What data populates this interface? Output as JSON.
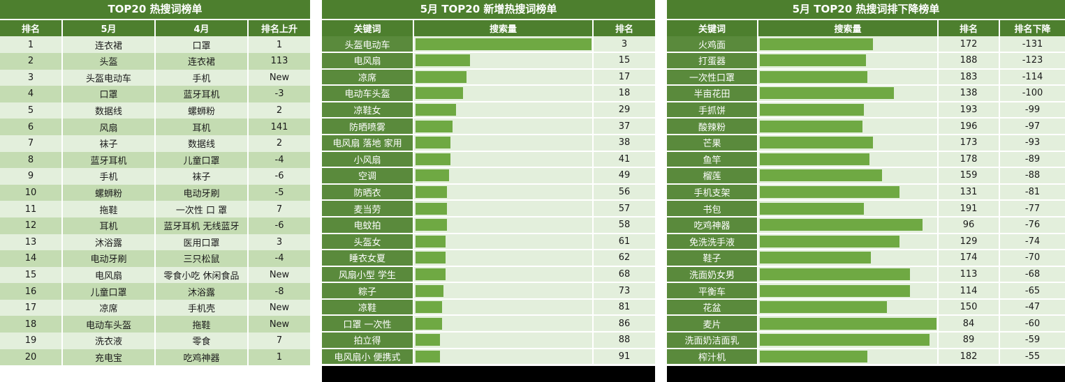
{
  "panel1": {
    "title": "TOP20 热搜词榜单",
    "headers": [
      "排名",
      "5月",
      "4月",
      "排名上升"
    ],
    "rows": [
      [
        "1",
        "连衣裙",
        "口罩",
        "1"
      ],
      [
        "2",
        "头盔",
        "连衣裙",
        "113"
      ],
      [
        "3",
        "头盔电动车",
        "手机",
        "New"
      ],
      [
        "4",
        "口罩",
        "蓝牙耳机",
        "-3"
      ],
      [
        "5",
        "数据线",
        "螺蛳粉",
        "2"
      ],
      [
        "6",
        "风扇",
        "耳机",
        "141"
      ],
      [
        "7",
        "袜子",
        "数据线",
        "2"
      ],
      [
        "8",
        "蓝牙耳机",
        "儿童口罩",
        "-4"
      ],
      [
        "9",
        "手机",
        "袜子",
        "-6"
      ],
      [
        "10",
        "螺蛳粉",
        "电动牙刷",
        "-5"
      ],
      [
        "11",
        "拖鞋",
        "一次性 口 罩",
        "7"
      ],
      [
        "12",
        "耳机",
        "蓝牙耳机 无线蓝牙",
        "-6"
      ],
      [
        "13",
        "沐浴露",
        "医用口罩",
        "3"
      ],
      [
        "14",
        "电动牙刷",
        "三只松鼠",
        "-4"
      ],
      [
        "15",
        "电风扇",
        "零食小吃 休闲食品",
        "New"
      ],
      [
        "16",
        "儿童口罩",
        "沐浴露",
        "-8"
      ],
      [
        "17",
        "凉席",
        "手机壳",
        "New"
      ],
      [
        "18",
        "电动车头盔",
        "拖鞋",
        "New"
      ],
      [
        "19",
        "洗衣液",
        "零食",
        "7"
      ],
      [
        "20",
        "充电宝",
        "吃鸡神器",
        "1"
      ]
    ]
  },
  "panel2": {
    "title": "5月 TOP20 新增热搜词榜单",
    "headers": [
      "关键词",
      "搜索量",
      "排名"
    ],
    "rows": [
      {
        "keyword": "头盔电动车",
        "volume": 1.0,
        "rank": "3"
      },
      {
        "keyword": "电风扇",
        "volume": 0.31,
        "rank": "15"
      },
      {
        "keyword": "凉席",
        "volume": 0.29,
        "rank": "17"
      },
      {
        "keyword": "电动车头盔",
        "volume": 0.27,
        "rank": "18"
      },
      {
        "keyword": "凉鞋女",
        "volume": 0.23,
        "rank": "29"
      },
      {
        "keyword": "防晒喷雾",
        "volume": 0.21,
        "rank": "37"
      },
      {
        "keyword": "电风扇 落地 家用",
        "volume": 0.2,
        "rank": "38"
      },
      {
        "keyword": "小风扇",
        "volume": 0.2,
        "rank": "41"
      },
      {
        "keyword": "空调",
        "volume": 0.19,
        "rank": "49"
      },
      {
        "keyword": "防晒衣",
        "volume": 0.18,
        "rank": "56"
      },
      {
        "keyword": "麦当劳",
        "volume": 0.18,
        "rank": "57"
      },
      {
        "keyword": "电蚊拍",
        "volume": 0.18,
        "rank": "58"
      },
      {
        "keyword": "头盔女",
        "volume": 0.17,
        "rank": "61"
      },
      {
        "keyword": "睡衣女夏",
        "volume": 0.17,
        "rank": "62"
      },
      {
        "keyword": "风扇小型 学生",
        "volume": 0.17,
        "rank": "68"
      },
      {
        "keyword": "粽子",
        "volume": 0.16,
        "rank": "73"
      },
      {
        "keyword": "凉鞋",
        "volume": 0.15,
        "rank": "81"
      },
      {
        "keyword": "口罩 一次性",
        "volume": 0.15,
        "rank": "86"
      },
      {
        "keyword": "拍立得",
        "volume": 0.14,
        "rank": "88"
      },
      {
        "keyword": "电风扇小 便携式",
        "volume": 0.14,
        "rank": "91"
      }
    ]
  },
  "panel3": {
    "title": "5月 TOP20 热搜词排下降榜单",
    "headers": [
      "关键词",
      "搜索量",
      "排名",
      "排名下降"
    ],
    "rows": [
      {
        "keyword": "火鸡面",
        "volume": 0.64,
        "rank": "172",
        "drop": "-131"
      },
      {
        "keyword": "打蛋器",
        "volume": 0.6,
        "rank": "188",
        "drop": "-123"
      },
      {
        "keyword": "一次性口罩",
        "volume": 0.61,
        "rank": "183",
        "drop": "-114"
      },
      {
        "keyword": "半亩花田",
        "volume": 0.76,
        "rank": "138",
        "drop": "-100"
      },
      {
        "keyword": "手抓饼",
        "volume": 0.59,
        "rank": "193",
        "drop": "-99"
      },
      {
        "keyword": "酸辣粉",
        "volume": 0.58,
        "rank": "196",
        "drop": "-97"
      },
      {
        "keyword": "芒果",
        "volume": 0.64,
        "rank": "173",
        "drop": "-93"
      },
      {
        "keyword": "鱼竿",
        "volume": 0.62,
        "rank": "178",
        "drop": "-89"
      },
      {
        "keyword": "榴莲",
        "volume": 0.69,
        "rank": "159",
        "drop": "-88"
      },
      {
        "keyword": "手机支架",
        "volume": 0.79,
        "rank": "131",
        "drop": "-81"
      },
      {
        "keyword": "书包",
        "volume": 0.59,
        "rank": "191",
        "drop": "-77"
      },
      {
        "keyword": "吃鸡神器",
        "volume": 0.92,
        "rank": "96",
        "drop": "-76"
      },
      {
        "keyword": "免洗洗手液",
        "volume": 0.79,
        "rank": "129",
        "drop": "-74"
      },
      {
        "keyword": "鞋子",
        "volume": 0.63,
        "rank": "174",
        "drop": "-70"
      },
      {
        "keyword": "洗面奶女男",
        "volume": 0.85,
        "rank": "113",
        "drop": "-68"
      },
      {
        "keyword": "平衡车",
        "volume": 0.85,
        "rank": "114",
        "drop": "-65"
      },
      {
        "keyword": "花盆",
        "volume": 0.72,
        "rank": "150",
        "drop": "-47"
      },
      {
        "keyword": "麦片",
        "volume": 1.0,
        "rank": "84",
        "drop": "-60"
      },
      {
        "keyword": "洗面奶洁面乳",
        "volume": 0.96,
        "rank": "89",
        "drop": "-59"
      },
      {
        "keyword": "榨汁机",
        "volume": 0.61,
        "rank": "182",
        "drop": "-55"
      }
    ]
  }
}
